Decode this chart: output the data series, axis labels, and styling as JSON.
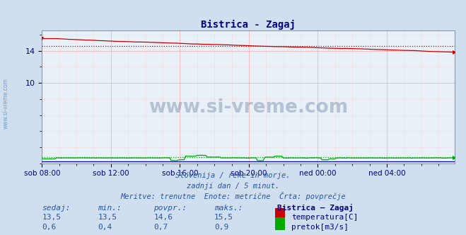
{
  "title": "Bistrica - Zagaj",
  "title_color": "#000080",
  "bg_color": "#d0dff0",
  "plot_bg_color": "#e8f0f8",
  "grid_color_major": "#ff9999",
  "grid_color_minor": "#ffcccc",
  "xlabel_ticks": [
    "sob 08:00",
    "sob 12:00",
    "sob 16:00",
    "sob 20:00",
    "ned 00:00",
    "ned 04:00"
  ],
  "ytick_labels": [
    "10",
    "14"
  ],
  "ytick_values": [
    10,
    14
  ],
  "ylim": [
    0,
    16.5
  ],
  "xlim": [
    0,
    287
  ],
  "temp_color": "#cc0000",
  "flow_color": "#00aa00",
  "height_color": "#0000cc",
  "avg_dotted_color_temp": "#cc0000",
  "avg_dotted_color_flow": "#00aa00",
  "temp_avg": 14.6,
  "flow_avg": 0.7,
  "flow_max": 0.9,
  "watermark_text": "www.si-vreme.com",
  "watermark_color": "#1a3a6a",
  "watermark_alpha": 0.25,
  "footer_line1": "Slovenija / reke in morje.",
  "footer_line2": "zadnji dan / 5 minut.",
  "footer_line3": "Meritve: trenutne  Enote: metrične  Črta: povprečje",
  "footer_color": "#2255aa",
  "legend_title": "Bistrica – Zagaj",
  "legend_color": "#000080",
  "side_label": "www.si-vreme.com",
  "side_label_color": "#5588bb",
  "table_header_color": "#2255aa",
  "sedaj_temp": "13,5",
  "min_temp": "13,5",
  "povpr_temp": "14,6",
  "maks_temp": "15,5",
  "sedaj_flow": "0,6",
  "min_flow": "0,4",
  "povpr_flow": "0,7",
  "maks_flow": "0,9",
  "n_points": 288
}
